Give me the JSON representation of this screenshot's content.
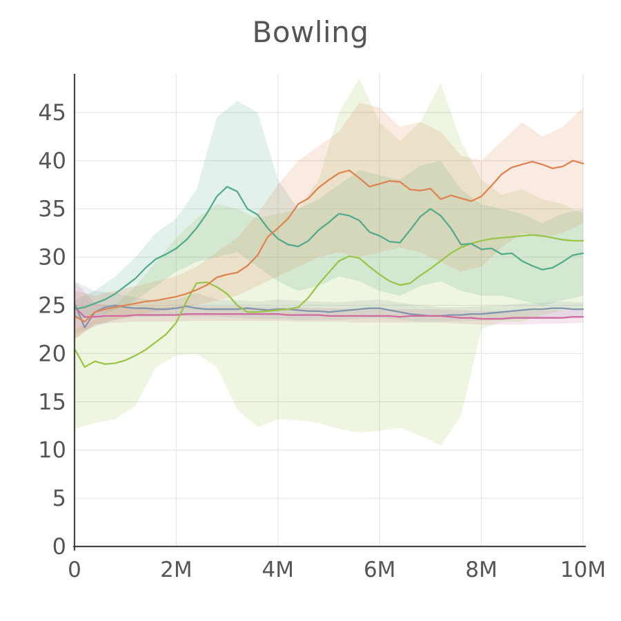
{
  "chart_data": {
    "type": "line",
    "title": "Bowling",
    "xlabel": "",
    "ylabel": "",
    "xlim": [
      0,
      10
    ],
    "ylim": [
      0,
      49
    ],
    "grid": true,
    "legend": "none",
    "background": "#ffffff",
    "grid_color": "#e7e7e7",
    "axis_color": "#444444",
    "text_color": "#555555",
    "band_opacity": 0.17,
    "x_ticks": [
      {
        "value": 0,
        "label": "0"
      },
      {
        "value": 2,
        "label": "2M"
      },
      {
        "value": 4,
        "label": "4M"
      },
      {
        "value": 6,
        "label": "6M"
      },
      {
        "value": 8,
        "label": "8M"
      },
      {
        "value": 10,
        "label": "10M"
      }
    ],
    "y_ticks": [
      {
        "value": 0,
        "label": "0"
      },
      {
        "value": 5,
        "label": "5"
      },
      {
        "value": 10,
        "label": "10"
      },
      {
        "value": 15,
        "label": "15"
      },
      {
        "value": 20,
        "label": "20"
      },
      {
        "value": 25,
        "label": "25"
      },
      {
        "value": 30,
        "label": "30"
      },
      {
        "value": 35,
        "label": "35"
      },
      {
        "value": 40,
        "label": "40"
      },
      {
        "value": 45,
        "label": "45"
      }
    ],
    "x": [
      0,
      0.2,
      0.4,
      0.6,
      0.8,
      1.0,
      1.2,
      1.4,
      1.6,
      1.8,
      2.0,
      2.2,
      2.4,
      2.6,
      2.8,
      3.0,
      3.2,
      3.4,
      3.6,
      3.8,
      4.0,
      4.2,
      4.4,
      4.6,
      4.8,
      5.0,
      5.2,
      5.4,
      5.6,
      5.8,
      6.0,
      6.2,
      6.4,
      6.6,
      6.8,
      7.0,
      7.2,
      7.4,
      7.6,
      7.8,
      8.0,
      8.2,
      8.4,
      8.6,
      8.8,
      9.0,
      9.2,
      9.4,
      9.6,
      9.8,
      10.0
    ],
    "band_x": [
      0,
      0.4,
      0.8,
      1.2,
      1.6,
      2.0,
      2.4,
      2.8,
      3.2,
      3.6,
      4.0,
      4.4,
      4.8,
      5.2,
      5.6,
      6.0,
      6.4,
      6.8,
      7.2,
      7.6,
      8.0,
      8.4,
      8.8,
      9.2,
      9.6,
      10.0
    ],
    "series": [
      {
        "name": "slate-blue",
        "color": "#8295ab",
        "values": [
          25.2,
          22.7,
          24.3,
          24.8,
          25.0,
          24.8,
          24.7,
          24.7,
          24.6,
          24.6,
          24.7,
          24.9,
          24.7,
          24.6,
          24.6,
          24.6,
          24.6,
          24.7,
          24.6,
          24.5,
          24.6,
          24.6,
          24.5,
          24.4,
          24.4,
          24.3,
          24.4,
          24.5,
          24.6,
          24.7,
          24.7,
          24.5,
          24.3,
          24.1,
          24.0,
          23.9,
          23.9,
          24.0,
          24.0,
          24.1,
          24.1,
          24.2,
          24.3,
          24.4,
          24.5,
          24.6,
          24.6,
          24.7,
          24.7,
          24.6,
          24.6
        ],
        "band_low": [
          22.0,
          22.8,
          23.5,
          23.8,
          23.8,
          23.9,
          23.8,
          23.8,
          23.7,
          23.6,
          23.6,
          23.5,
          23.5,
          23.5,
          23.6,
          23.7,
          23.5,
          23.3,
          23.3,
          23.4,
          23.4,
          23.5,
          23.6,
          23.7,
          23.8,
          23.8
        ],
        "band_high": [
          27.5,
          26.5,
          26.3,
          25.8,
          25.5,
          25.6,
          26.3,
          25.6,
          25.5,
          25.4,
          25.6,
          25.5,
          25.4,
          25.3,
          25.5,
          25.6,
          25.3,
          25.0,
          24.8,
          24.8,
          24.9,
          25.0,
          25.2,
          25.3,
          25.4,
          25.3
        ]
      },
      {
        "name": "pink",
        "color": "#cf6a9f",
        "values": [
          24.8,
          23.8,
          23.8,
          23.9,
          23.9,
          23.9,
          24.0,
          24.0,
          24.0,
          24.0,
          24.0,
          24.1,
          24.1,
          24.1,
          24.1,
          24.1,
          24.1,
          24.1,
          24.1,
          24.1,
          24.1,
          24.0,
          24.0,
          24.0,
          24.0,
          23.9,
          23.9,
          23.9,
          23.9,
          23.9,
          23.9,
          23.9,
          23.8,
          23.9,
          23.9,
          23.9,
          23.9,
          23.8,
          23.7,
          23.7,
          23.6,
          23.6,
          23.6,
          23.7,
          23.7,
          23.7,
          23.7,
          23.7,
          23.7,
          23.8,
          23.8
        ],
        "band_low": [
          21.5,
          23.0,
          23.2,
          23.3,
          23.3,
          23.3,
          23.4,
          23.4,
          23.4,
          23.4,
          23.4,
          23.3,
          23.3,
          23.3,
          23.2,
          23.2,
          23.2,
          23.2,
          23.2,
          23.1,
          23.0,
          23.0,
          23.0,
          23.1,
          23.1,
          23.2
        ],
        "band_high": [
          27.5,
          25.2,
          24.9,
          24.8,
          24.8,
          24.8,
          24.9,
          24.9,
          24.9,
          24.8,
          24.8,
          24.8,
          24.7,
          24.7,
          24.6,
          24.6,
          24.6,
          24.6,
          24.6,
          24.5,
          24.4,
          24.4,
          24.4,
          24.5,
          24.5,
          24.5
        ]
      },
      {
        "name": "light-green",
        "color": "#9ac548",
        "values": [
          20.5,
          18.6,
          19.2,
          18.9,
          19.0,
          19.3,
          19.8,
          20.4,
          21.2,
          22.0,
          23.2,
          25.4,
          27.3,
          27.4,
          26.9,
          26.2,
          25.0,
          24.3,
          24.3,
          24.4,
          24.5,
          24.6,
          24.8,
          25.8,
          27.2,
          28.4,
          29.6,
          30.1,
          29.9,
          29.0,
          28.2,
          27.5,
          27.1,
          27.3,
          28.1,
          28.8,
          29.6,
          30.4,
          31.0,
          31.4,
          31.7,
          31.9,
          32.0,
          32.1,
          32.2,
          32.3,
          32.2,
          32.0,
          31.8,
          31.7,
          31.7
        ],
        "band_low": [
          12.2,
          12.8,
          13.2,
          14.6,
          18.6,
          19.8,
          20.0,
          18.6,
          14.2,
          12.4,
          13.2,
          13.1,
          12.8,
          12.2,
          11.8,
          12.0,
          12.3,
          11.5,
          10.5,
          13.5,
          22.5,
          23.3,
          23.3,
          24.0,
          24.5,
          24.5
        ],
        "band_high": [
          22.5,
          23.5,
          25.0,
          27.0,
          29.5,
          32.0,
          34.0,
          35.5,
          35.0,
          34.0,
          34.5,
          35.0,
          38.0,
          45.0,
          48.5,
          44.0,
          42.0,
          44.0,
          48.0,
          42.0,
          38.0,
          36.5,
          37.0,
          36.0,
          35.5,
          34.5
        ]
      },
      {
        "name": "teal-green",
        "color": "#54ab8b",
        "values": [
          24.6,
          24.8,
          25.2,
          25.6,
          26.2,
          27.0,
          27.8,
          28.9,
          29.8,
          30.3,
          30.9,
          31.8,
          33.0,
          34.5,
          36.3,
          37.3,
          36.8,
          35.0,
          34.4,
          33.0,
          31.9,
          31.3,
          31.1,
          31.7,
          32.8,
          33.6,
          34.5,
          34.3,
          33.8,
          32.6,
          32.2,
          31.6,
          31.5,
          32.8,
          34.2,
          35.0,
          34.3,
          33.0,
          31.3,
          31.4,
          30.8,
          30.9,
          30.3,
          30.4,
          29.6,
          29.1,
          28.7,
          28.9,
          29.5,
          30.2,
          30.4
        ],
        "band_low": [
          23.5,
          23.8,
          24.5,
          25.5,
          27.0,
          28.5,
          29.5,
          30.0,
          30.5,
          29.0,
          27.5,
          26.5,
          27.0,
          28.0,
          27.5,
          26.5,
          26.0,
          27.0,
          27.5,
          26.5,
          26.0,
          26.0,
          25.5,
          25.0,
          25.5,
          26.0
        ],
        "band_high": [
          25.5,
          26.5,
          28.0,
          30.0,
          32.5,
          34.0,
          37.0,
          44.5,
          46.2,
          45.0,
          38.0,
          35.0,
          36.0,
          37.5,
          39.0,
          38.5,
          38.0,
          39.5,
          40.0,
          37.0,
          35.5,
          35.0,
          34.5,
          33.5,
          34.5,
          35.0
        ]
      },
      {
        "name": "orange",
        "color": "#dd8452",
        "values": [
          23.9,
          23.3,
          24.3,
          24.6,
          24.8,
          25.0,
          25.2,
          25.4,
          25.5,
          25.7,
          25.9,
          26.2,
          26.6,
          27.1,
          27.9,
          28.2,
          28.4,
          29.1,
          30.2,
          32.1,
          33.0,
          34.0,
          35.5,
          36.1,
          37.2,
          38.0,
          38.7,
          39.0,
          38.2,
          37.3,
          37.6,
          37.9,
          37.8,
          37.0,
          36.9,
          37.1,
          36.0,
          36.4,
          36.1,
          35.8,
          36.3,
          37.4,
          38.6,
          39.3,
          39.6,
          39.9,
          39.6,
          39.2,
          39.4,
          40.0,
          39.7
        ],
        "band_low": [
          21.5,
          23.0,
          23.5,
          24.0,
          24.3,
          24.6,
          25.0,
          25.5,
          26.0,
          27.0,
          28.0,
          29.0,
          30.0,
          30.5,
          30.0,
          30.5,
          31.0,
          30.5,
          29.5,
          28.5,
          29.0,
          31.0,
          32.5,
          32.0,
          32.5,
          33.5
        ],
        "band_high": [
          26.5,
          26.0,
          26.5,
          27.0,
          27.5,
          28.0,
          29.0,
          30.5,
          32.0,
          34.5,
          37.5,
          40.0,
          41.5,
          43.0,
          46.0,
          45.5,
          43.5,
          44.0,
          43.0,
          40.5,
          40.0,
          42.0,
          44.0,
          42.5,
          43.5,
          45.5
        ]
      }
    ]
  }
}
